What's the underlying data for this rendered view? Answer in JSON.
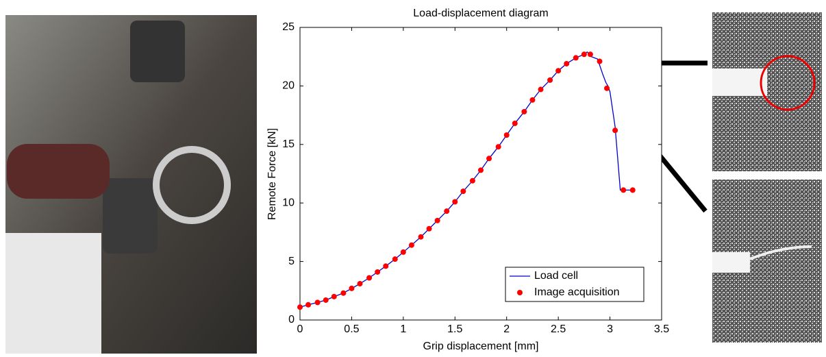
{
  "chart_data": {
    "type": "line",
    "title": "Load-displacement diagram",
    "x_label": "Grip displacement [mm]",
    "y_label": "Remote Force [kN]",
    "xlim": [
      0,
      3.5
    ],
    "xticks": [
      0,
      0.5,
      1,
      1.5,
      2,
      2.5,
      3,
      3.5
    ],
    "ylim": [
      0,
      25
    ],
    "yticks": [
      0,
      5,
      10,
      15,
      20,
      25
    ],
    "legend": "lower right",
    "series": [
      {
        "name": "Load cell",
        "type": "line",
        "color": "#0000cc",
        "x": [
          0,
          0.08,
          0.17,
          0.25,
          0.33,
          0.42,
          0.5,
          0.58,
          0.67,
          0.75,
          0.83,
          0.92,
          1.0,
          1.08,
          1.17,
          1.25,
          1.33,
          1.42,
          1.5,
          1.58,
          1.67,
          1.75,
          1.83,
          1.92,
          2.0,
          2.08,
          2.17,
          2.25,
          2.33,
          2.42,
          2.5,
          2.58,
          2.67,
          2.75,
          2.78,
          2.82,
          2.88,
          2.93,
          2.96,
          2.98,
          3.0,
          3.05,
          3.1,
          3.22
        ],
        "values": [
          1.1,
          1.3,
          1.5,
          1.7,
          2.0,
          2.3,
          2.7,
          3.1,
          3.6,
          4.1,
          4.6,
          5.2,
          5.8,
          6.4,
          7.1,
          7.8,
          8.5,
          9.3,
          10.1,
          11.0,
          11.9,
          12.8,
          13.8,
          14.8,
          15.8,
          16.8,
          17.8,
          18.8,
          19.7,
          20.5,
          21.3,
          21.9,
          22.4,
          22.7,
          22.9,
          22.5,
          22.3,
          21.0,
          20.3,
          20.0,
          19.5,
          16.5,
          11.1,
          11.1
        ]
      },
      {
        "name": "Image acquisition",
        "type": "scatter",
        "color": "#ff0000",
        "x": [
          0,
          0.08,
          0.17,
          0.25,
          0.33,
          0.42,
          0.5,
          0.58,
          0.67,
          0.75,
          0.83,
          0.92,
          1.0,
          1.08,
          1.17,
          1.25,
          1.33,
          1.42,
          1.5,
          1.58,
          1.67,
          1.75,
          1.83,
          1.92,
          2.0,
          2.08,
          2.17,
          2.25,
          2.33,
          2.42,
          2.5,
          2.58,
          2.67,
          2.75,
          2.81,
          2.9,
          2.97,
          3.05,
          3.13,
          3.22
        ],
        "values": [
          1.1,
          1.3,
          1.5,
          1.7,
          2.0,
          2.3,
          2.7,
          3.1,
          3.6,
          4.1,
          4.6,
          5.2,
          5.8,
          6.4,
          7.1,
          7.8,
          8.5,
          9.3,
          10.1,
          11.0,
          11.9,
          12.8,
          13.8,
          14.8,
          15.8,
          16.8,
          17.8,
          18.8,
          19.7,
          20.5,
          21.3,
          21.9,
          22.4,
          22.7,
          22.7,
          22.1,
          19.8,
          16.2,
          11.1,
          11.1
        ]
      }
    ]
  }
}
